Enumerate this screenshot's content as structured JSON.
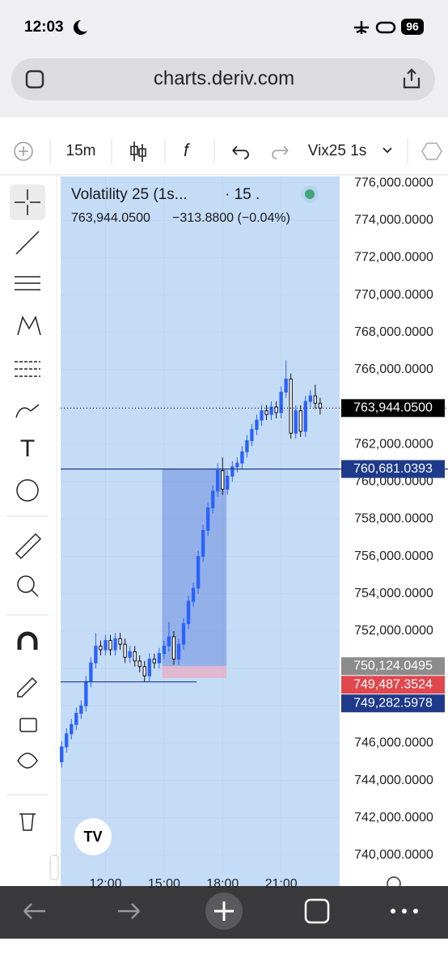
{
  "status_bar": {
    "time": "12:03",
    "battery": "96"
  },
  "browser": {
    "url": "charts.deriv.com"
  },
  "toolbar": {
    "interval": "15m",
    "symbol": "Vix25 1s"
  },
  "chart_data": {
    "type": "candlestick",
    "legend": {
      "symbol": "Volatility 25 (1s...",
      "interval": "· 15 .",
      "price": "763,944.0500",
      "change": "−313.8800 (−0.04%)"
    },
    "x": [
      9.75,
      10,
      10.25,
      10.5,
      10.75,
      11,
      11.25,
      11.5,
      11.75,
      12,
      12.25,
      12.5,
      12.75,
      13,
      13.25,
      13.5,
      13.75,
      14,
      14.25,
      14.5,
      14.75,
      15,
      15.25,
      15.5,
      15.75,
      16,
      16.25,
      16.5,
      16.75,
      17,
      17.25,
      17.5,
      17.75,
      18,
      18.25,
      18.5,
      18.75,
      19,
      19.25,
      19.5,
      19.75,
      20,
      20.25,
      20.5,
      20.75,
      21,
      21.25,
      21.5,
      21.75,
      22,
      22.25,
      22.5,
      22.75,
      23
    ],
    "open": [
      745000,
      745800,
      746500,
      747000,
      747600,
      748000,
      749300,
      750300,
      751200,
      751000,
      751500,
      751000,
      751600,
      751300,
      750600,
      750900,
      750400,
      750100,
      749600,
      750500,
      750300,
      750800,
      751200,
      751700,
      750500,
      751300,
      752400,
      753600,
      754300,
      756000,
      757400,
      758600,
      759500,
      760600,
      759600,
      760300,
      760800,
      761000,
      761600,
      762200,
      762800,
      763300,
      763800,
      763600,
      764000,
      763700,
      764800,
      765500,
      762600,
      763800,
      762700,
      764300,
      764600,
      764200
    ],
    "high": [
      746100,
      746800,
      747300,
      747900,
      748300,
      749600,
      750600,
      751900,
      751500,
      751800,
      751800,
      751900,
      751900,
      751600,
      751200,
      751200,
      750700,
      750400,
      750800,
      750800,
      751100,
      751500,
      752500,
      752000,
      751600,
      752700,
      753900,
      754600,
      756300,
      757700,
      758900,
      759800,
      761000,
      761300,
      760600,
      761100,
      761300,
      761900,
      762500,
      763100,
      763600,
      764100,
      764100,
      764300,
      764300,
      765100,
      766500,
      765800,
      764100,
      764100,
      764600,
      764900,
      765200,
      764500
    ],
    "low": [
      744700,
      745500,
      746200,
      746700,
      747300,
      747700,
      749000,
      750000,
      750700,
      750700,
      750700,
      750700,
      751000,
      750300,
      750300,
      750100,
      749800,
      749300,
      749300,
      750000,
      750000,
      750500,
      750900,
      750200,
      750200,
      751000,
      752100,
      753300,
      754000,
      755700,
      757100,
      758300,
      759200,
      759300,
      759300,
      760000,
      760500,
      760700,
      761300,
      761900,
      762500,
      763000,
      763300,
      763300,
      763400,
      763400,
      764500,
      762300,
      762300,
      762400,
      762400,
      764000,
      763900,
      763600
    ],
    "close": [
      745800,
      746500,
      747000,
      747600,
      748000,
      749300,
      750300,
      751200,
      751000,
      751500,
      751000,
      751600,
      751300,
      750600,
      750900,
      750400,
      750100,
      749600,
      750500,
      750300,
      750800,
      751200,
      751700,
      750500,
      751300,
      752400,
      753600,
      754300,
      756000,
      757400,
      758600,
      759500,
      760600,
      759600,
      760300,
      760800,
      761000,
      761600,
      762200,
      762800,
      763300,
      763800,
      763600,
      764000,
      763700,
      764800,
      765500,
      762600,
      763800,
      762700,
      764300,
      764600,
      764200,
      763944.05
    ],
    "up_color": "#2962ff",
    "down_color": "#ffffff",
    "xlim": [
      9.7,
      24
    ],
    "ylim": [
      739000,
      776350
    ],
    "xticks": [
      {
        "value": 12,
        "label": "12:00"
      },
      {
        "value": 15,
        "label": "15:00"
      },
      {
        "value": 18,
        "label": "18:00"
      },
      {
        "value": 21,
        "label": "21:00"
      }
    ],
    "yticks": [
      {
        "value": 740000,
        "label": "740,000.0000"
      },
      {
        "value": 742000,
        "label": "742,000.0000"
      },
      {
        "value": 744000,
        "label": "744,000.0000"
      },
      {
        "value": 746000,
        "label": "746,000.0000"
      },
      {
        "value": 748000,
        "label": "748,000.0000"
      },
      {
        "value": 750000,
        "label": "750,000.0000"
      },
      {
        "value": 752000,
        "label": "752,000.0000"
      },
      {
        "value": 754000,
        "label": "754,000.0000"
      },
      {
        "value": 756000,
        "label": "756,000.0000"
      },
      {
        "value": 758000,
        "label": "758,000.0000"
      },
      {
        "value": 760000,
        "label": "760,000.0000"
      },
      {
        "value": 762000,
        "label": "762,000.0000"
      },
      {
        "value": 764000,
        "label": "764,000.0000"
      },
      {
        "value": 766000,
        "label": "766,000.0000"
      },
      {
        "value": 768000,
        "label": "768,000.0000"
      },
      {
        "value": 770000,
        "label": "770,000.0000"
      },
      {
        "value": 772000,
        "label": "772,000.0000"
      },
      {
        "value": 774000,
        "label": "774,000.0000"
      },
      {
        "value": 776000,
        "label": "776,000.0000"
      }
    ],
    "price_lines": [
      {
        "value": 763944.05,
        "label": "763,944.0500",
        "color": "#000000",
        "style": "dotted"
      },
      {
        "value": 760681.0393,
        "label": "760,681.0393",
        "color": "#1e3a8a",
        "style": "solid"
      },
      {
        "value": 750124.0495,
        "label": "750,124.0495",
        "color": "#8c8c8c",
        "style": "none"
      },
      {
        "value": 749487.3524,
        "label": "749,487.3524",
        "color": "#e0484e",
        "style": "none"
      },
      {
        "value": 749282.5978,
        "label": "749,282.5978",
        "color": "#1e3a8a",
        "style": "solid",
        "end": 16.67
      }
    ],
    "position": {
      "start": 14.9,
      "end": 18.2
    }
  }
}
